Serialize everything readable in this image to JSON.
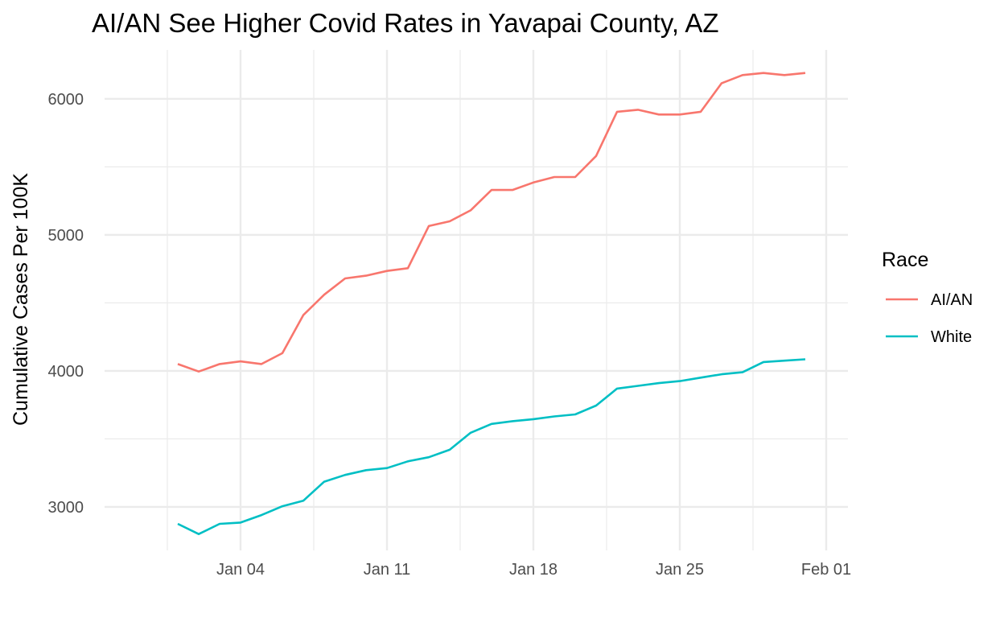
{
  "chart_data": {
    "type": "line",
    "title": "AI/AN See Higher Covid Rates in Yavapai County, AZ",
    "xlabel": "",
    "ylabel": "Cumulative Cases Per 100K",
    "x": [
      "2021-01-01",
      "2021-01-02",
      "2021-01-03",
      "2021-01-04",
      "2021-01-05",
      "2021-01-06",
      "2021-01-07",
      "2021-01-08",
      "2021-01-09",
      "2021-01-10",
      "2021-01-11",
      "2021-01-12",
      "2021-01-13",
      "2021-01-14",
      "2021-01-15",
      "2021-01-16",
      "2021-01-17",
      "2021-01-18",
      "2021-01-19",
      "2021-01-20",
      "2021-01-21",
      "2021-01-22",
      "2021-01-23",
      "2021-01-24",
      "2021-01-25",
      "2021-01-26",
      "2021-01-27",
      "2021-01-28",
      "2021-01-29",
      "2021-01-30",
      "2021-01-31"
    ],
    "x_ticks": [
      "2021-01-04",
      "2021-01-11",
      "2021-01-18",
      "2021-01-25",
      "2021-02-01"
    ],
    "x_tick_labels": [
      "Jan 04",
      "Jan 11",
      "Jan 18",
      "Jan 25",
      "Feb 01"
    ],
    "x_range": [
      "2020-12-29",
      "2021-02-01"
    ],
    "y_ticks": [
      3000,
      4000,
      5000,
      6000
    ],
    "ylim": [
      2680,
      6360
    ],
    "grid": true,
    "legend": {
      "title": "Race",
      "position": "right"
    },
    "series": [
      {
        "name": "AI/AN",
        "color": "#F8766D",
        "values": [
          4050,
          3995,
          4050,
          4070,
          4050,
          4130,
          4410,
          4560,
          4680,
          4700,
          4735,
          4755,
          5065,
          5100,
          5180,
          5330,
          5330,
          5385,
          5425,
          5425,
          5580,
          5905,
          5920,
          5885,
          5885,
          5905,
          6115,
          6175,
          6190,
          6175,
          6190
        ]
      },
      {
        "name": "White",
        "color": "#00BFC4",
        "values": [
          2875,
          2800,
          2875,
          2885,
          2940,
          3005,
          3045,
          3185,
          3235,
          3270,
          3285,
          3335,
          3365,
          3420,
          3545,
          3610,
          3630,
          3645,
          3665,
          3680,
          3745,
          3870,
          3890,
          3910,
          3925,
          3950,
          3975,
          3990,
          4065,
          4075,
          4085
        ]
      }
    ]
  }
}
